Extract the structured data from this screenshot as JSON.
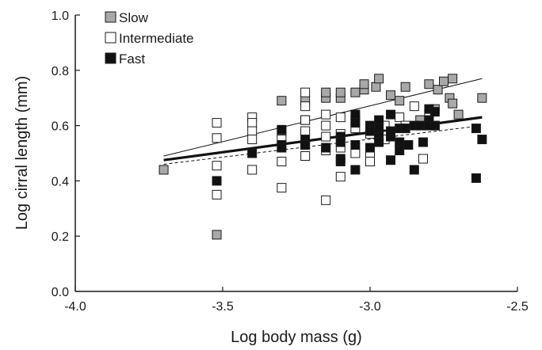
{
  "chart_data": {
    "type": "scatter",
    "xlabel": "Log body mass (g)",
    "ylabel": "Log cirral length (mm)",
    "xlim": [
      -4.0,
      -2.5
    ],
    "ylim": [
      0.0,
      1.0
    ],
    "x_ticks": [
      "-4.0",
      "-3.5",
      "-3.0",
      "-2.5"
    ],
    "y_ticks": [
      "0.0",
      "0.2",
      "0.4",
      "0.6",
      "0.8",
      "1.0"
    ],
    "grid": false,
    "legend_position": "top-left",
    "series": [
      {
        "name": "Slow",
        "color": "#a8a8a8",
        "marker": "square-filled-gray",
        "trend": {
          "style": "thin-solid",
          "x": [
            -3.7,
            -2.62
          ],
          "y": [
            0.49,
            0.77
          ]
        },
        "points": [
          [
            -3.7,
            0.44
          ],
          [
            -3.52,
            0.205
          ],
          [
            -3.3,
            0.69
          ],
          [
            -3.22,
            0.62
          ],
          [
            -3.22,
            0.69
          ],
          [
            -3.15,
            0.7
          ],
          [
            -3.15,
            0.72
          ],
          [
            -3.1,
            0.7
          ],
          [
            -3.1,
            0.72
          ],
          [
            -3.05,
            0.72
          ],
          [
            -3.02,
            0.73
          ],
          [
            -3.02,
            0.75
          ],
          [
            -2.98,
            0.74
          ],
          [
            -2.97,
            0.77
          ],
          [
            -2.93,
            0.71
          ],
          [
            -2.9,
            0.69
          ],
          [
            -2.88,
            0.74
          ],
          [
            -2.83,
            0.62
          ],
          [
            -2.8,
            0.75
          ],
          [
            -2.78,
            0.66
          ],
          [
            -2.77,
            0.73
          ],
          [
            -2.75,
            0.76
          ],
          [
            -2.73,
            0.7
          ],
          [
            -2.72,
            0.77
          ],
          [
            -2.72,
            0.68
          ],
          [
            -2.7,
            0.64
          ],
          [
            -2.62,
            0.7
          ]
        ]
      },
      {
        "name": "Intermediate",
        "color": "#ffffff",
        "marker": "square-open",
        "trend": {
          "style": "thin-dashed",
          "x": [
            -3.7,
            -2.62
          ],
          "y": [
            0.46,
            0.6
          ]
        },
        "points": [
          [
            -3.52,
            0.61
          ],
          [
            -3.52,
            0.555
          ],
          [
            -3.52,
            0.455
          ],
          [
            -3.52,
            0.35
          ],
          [
            -3.4,
            0.63
          ],
          [
            -3.4,
            0.61
          ],
          [
            -3.4,
            0.58
          ],
          [
            -3.4,
            0.55
          ],
          [
            -3.4,
            0.44
          ],
          [
            -3.3,
            0.58
          ],
          [
            -3.3,
            0.55
          ],
          [
            -3.3,
            0.47
          ],
          [
            -3.3,
            0.375
          ],
          [
            -3.22,
            0.72
          ],
          [
            -3.22,
            0.67
          ],
          [
            -3.22,
            0.62
          ],
          [
            -3.22,
            0.58
          ],
          [
            -3.22,
            0.53
          ],
          [
            -3.22,
            0.49
          ],
          [
            -3.15,
            0.64
          ],
          [
            -3.15,
            0.6
          ],
          [
            -3.15,
            0.56
          ],
          [
            -3.15,
            0.51
          ],
          [
            -3.15,
            0.33
          ],
          [
            -3.1,
            0.63
          ],
          [
            -3.1,
            0.57
          ],
          [
            -3.1,
            0.52
          ],
          [
            -3.1,
            0.415
          ],
          [
            -3.05,
            0.62
          ],
          [
            -3.05,
            0.59
          ],
          [
            -3.05,
            0.5
          ],
          [
            -3.0,
            0.57
          ],
          [
            -3.0,
            0.5
          ],
          [
            -3.0,
            0.47
          ],
          [
            -2.95,
            0.6
          ],
          [
            -2.95,
            0.55
          ],
          [
            -2.9,
            0.63
          ],
          [
            -2.88,
            0.6
          ],
          [
            -2.85,
            0.67
          ],
          [
            -2.82,
            0.48
          ],
          [
            -2.8,
            0.64
          ],
          [
            -2.78,
            0.6
          ]
        ]
      },
      {
        "name": "Fast",
        "color": "#111111",
        "marker": "square-filled-black",
        "trend": {
          "style": "thick-solid",
          "x": [
            -3.7,
            -2.62
          ],
          "y": [
            0.475,
            0.63
          ]
        },
        "points": [
          [
            -3.52,
            0.4
          ],
          [
            -3.4,
            0.5
          ],
          [
            -3.3,
            0.585
          ],
          [
            -3.3,
            0.53
          ],
          [
            -3.3,
            0.52
          ],
          [
            -3.22,
            0.55
          ],
          [
            -3.22,
            0.53
          ],
          [
            -3.15,
            0.52
          ],
          [
            -3.1,
            0.56
          ],
          [
            -3.1,
            0.54
          ],
          [
            -3.1,
            0.48
          ],
          [
            -3.1,
            0.47
          ],
          [
            -3.05,
            0.64
          ],
          [
            -3.05,
            0.61
          ],
          [
            -3.05,
            0.53
          ],
          [
            -3.05,
            0.44
          ],
          [
            -3.0,
            0.6
          ],
          [
            -3.0,
            0.58
          ],
          [
            -3.0,
            0.52
          ],
          [
            -2.97,
            0.62
          ],
          [
            -2.97,
            0.59
          ],
          [
            -2.97,
            0.56
          ],
          [
            -2.97,
            0.54
          ],
          [
            -2.93,
            0.64
          ],
          [
            -2.93,
            0.58
          ],
          [
            -2.93,
            0.56
          ],
          [
            -2.93,
            0.475
          ],
          [
            -2.9,
            0.59
          ],
          [
            -2.9,
            0.54
          ],
          [
            -2.9,
            0.51
          ],
          [
            -2.88,
            0.59
          ],
          [
            -2.87,
            0.53
          ],
          [
            -2.85,
            0.6
          ],
          [
            -2.85,
            0.44
          ],
          [
            -2.83,
            0.6
          ],
          [
            -2.82,
            0.54
          ],
          [
            -2.8,
            0.66
          ],
          [
            -2.8,
            0.62
          ],
          [
            -2.8,
            0.6
          ],
          [
            -2.78,
            0.65
          ],
          [
            -2.78,
            0.6
          ],
          [
            -2.64,
            0.59
          ],
          [
            -2.64,
            0.41
          ],
          [
            -2.62,
            0.55
          ]
        ]
      }
    ]
  }
}
